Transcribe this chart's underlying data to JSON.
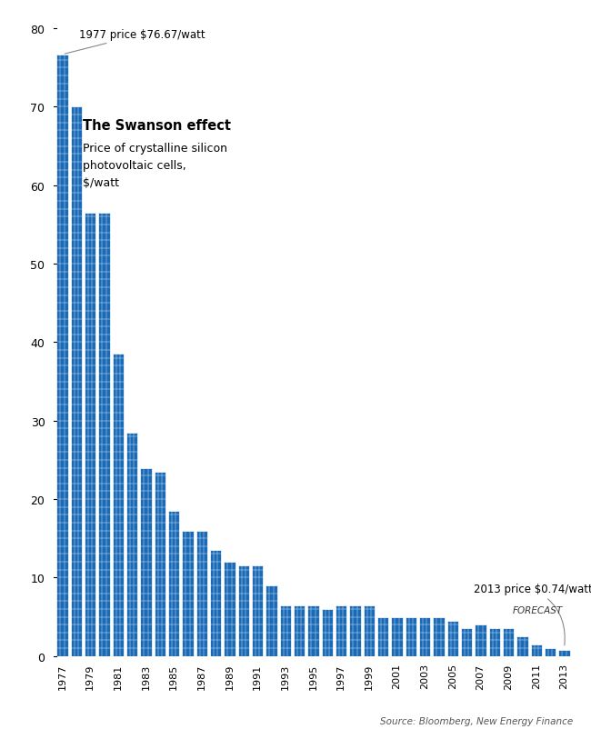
{
  "years": [
    1977,
    1978,
    1979,
    1980,
    1981,
    1982,
    1983,
    1984,
    1985,
    1986,
    1987,
    1988,
    1989,
    1990,
    1991,
    1992,
    1993,
    1994,
    1995,
    1996,
    1997,
    1998,
    1999,
    2000,
    2001,
    2002,
    2003,
    2004,
    2005,
    2006,
    2007,
    2008,
    2009,
    2010,
    2011,
    2012,
    2013
  ],
  "values": [
    76.67,
    70.0,
    56.5,
    56.5,
    38.5,
    28.5,
    24.0,
    23.5,
    18.5,
    16.0,
    16.0,
    13.5,
    12.0,
    11.5,
    11.5,
    9.0,
    6.5,
    6.5,
    6.5,
    6.0,
    6.5,
    6.5,
    6.5,
    5.0,
    5.0,
    5.0,
    5.0,
    5.0,
    4.5,
    3.5,
    4.0,
    3.5,
    3.5,
    2.5,
    1.5,
    1.0,
    0.74
  ],
  "bar_color": "#1a6ab8",
  "bar_edge_color": "#ffffff",
  "background_color": "#ffffff",
  "title_bold": "The Swanson effect",
  "title_sub": "Price of crystalline silicon\nphotovoltaic cells,\n$/watt",
  "annotation_1977": "1977 price $76.67/watt",
  "annotation_2013": "2013 price $0.74/watt",
  "annotation_forecast": "FORECAST",
  "source": "Source: Bloomberg, New Energy Finance",
  "ylim": [
    0,
    80
  ],
  "yticks": [
    0,
    10,
    20,
    30,
    40,
    50,
    60,
    70,
    80
  ]
}
